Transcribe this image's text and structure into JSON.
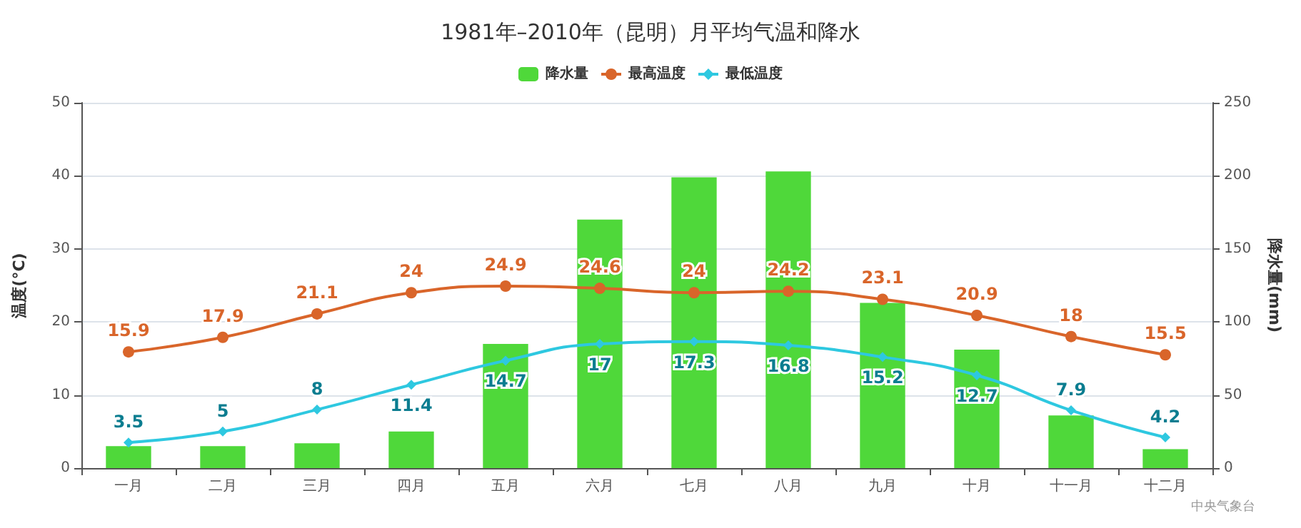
{
  "chart_data": {
    "type": "bar",
    "title": "1981年–2010年（昆明）月平均气温和降水",
    "categories": [
      "一月",
      "二月",
      "三月",
      "四月",
      "五月",
      "六月",
      "七月",
      "八月",
      "九月",
      "十月",
      "十一月",
      "十二月"
    ],
    "series": [
      {
        "name": "降水量",
        "axis": "y2",
        "color": "#4fd83a",
        "values": [
          15,
          15,
          17,
          25,
          85,
          170,
          199,
          203,
          113,
          81,
          36,
          13
        ]
      },
      {
        "name": "最高温度",
        "type": "line",
        "color": "#d9652a",
        "marker": "circle",
        "data_labels": true,
        "values": [
          15.9,
          17.9,
          21.1,
          24,
          24.9,
          24.6,
          24.0,
          24.2,
          23.1,
          20.9,
          18,
          15.5
        ]
      },
      {
        "name": "最低温度",
        "type": "line",
        "color": "#2ec8e0",
        "marker": "diamond",
        "data_labels": true,
        "values": [
          3.5,
          5,
          8,
          11.4,
          14.7,
          17,
          17.3,
          16.8,
          15.2,
          12.7,
          7.9,
          4.2
        ]
      }
    ],
    "ylabel": "温度(°C)",
    "y2label": "降水量(mm)",
    "ylim": [
      0,
      50
    ],
    "yticks": [
      0,
      10,
      20,
      30,
      40,
      50
    ],
    "y2lim": [
      0,
      250
    ],
    "y2ticks": [
      0,
      50,
      100,
      150,
      200,
      250
    ],
    "grid": "y",
    "legend": "top",
    "line_style": "solid",
    "annotations": [
      "中央气象台"
    ]
  }
}
